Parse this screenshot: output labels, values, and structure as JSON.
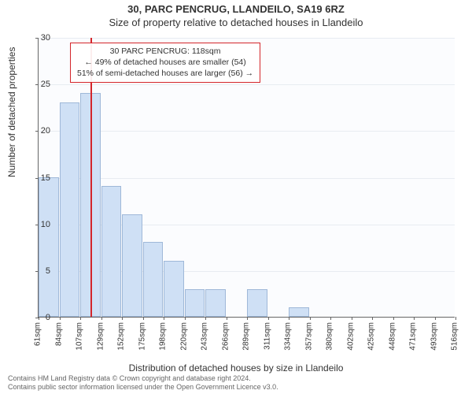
{
  "title_line1": "30, PARC PENCRUG, LLANDEILO, SA19 6RZ",
  "title_line2": "Size of property relative to detached houses in Llandeilo",
  "chart": {
    "type": "histogram",
    "background_color": "#fbfcfe",
    "grid_color": "#e8ecf2",
    "axis_color": "#666666",
    "bar_fill": "#cfe0f5",
    "bar_border": "#9fb8d8",
    "ref_line_color": "#d4252a",
    "y": {
      "label": "Number of detached properties",
      "min": 0,
      "max": 30,
      "ticks": [
        0,
        5,
        10,
        15,
        20,
        25,
        30
      ]
    },
    "x": {
      "label": "Distribution of detached houses by size in Llandeilo",
      "tick_labels": [
        "61sqm",
        "84sqm",
        "107sqm",
        "129sqm",
        "152sqm",
        "175sqm",
        "198sqm",
        "220sqm",
        "243sqm",
        "266sqm",
        "289sqm",
        "311sqm",
        "334sqm",
        "357sqm",
        "380sqm",
        "402sqm",
        "425sqm",
        "448sqm",
        "471sqm",
        "493sqm",
        "516sqm"
      ]
    },
    "bars": [
      15,
      23,
      24,
      14,
      11,
      8,
      6,
      3,
      3,
      0,
      3,
      0,
      1,
      0,
      0,
      0,
      0,
      0,
      0,
      0
    ],
    "ref_line": {
      "percentile_position": 0.49,
      "label_line1": "30 PARC PENCRUG: 118sqm",
      "label_line2": "← 49% of detached houses are smaller (54)",
      "label_line3": "51% of semi-detached houses are larger (56) →"
    }
  },
  "footnote_line1": "Contains HM Land Registry data © Crown copyright and database right 2024.",
  "footnote_line2": "Contains public sector information licensed under the Open Government Licence v3.0."
}
